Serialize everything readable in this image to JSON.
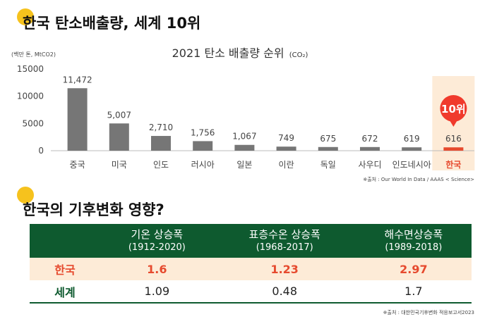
{
  "header1": "한국 탄소배출량, 세계 10위",
  "header2": "한국의 기후변화 영향?",
  "chart_data": {
    "type": "bar",
    "title": "2021 탄소 배출량 순위",
    "title_suffix": "(CO₂)",
    "ylabel": "(백만 톤, MtCO2)",
    "ylim": [
      0,
      15000
    ],
    "yticks": [
      0,
      5000,
      10000,
      15000
    ],
    "categories": [
      "중국",
      "미국",
      "인도",
      "러시아",
      "일본",
      "이란",
      "독일",
      "사우디",
      "인도네시아",
      "한국"
    ],
    "values": [
      11472,
      5007,
      2710,
      1756,
      1067,
      749,
      675,
      672,
      619,
      616
    ],
    "value_labels": [
      "11,472",
      "5,007",
      "2,710",
      "1,756",
      "1,067",
      "749",
      "675",
      "672",
      "619",
      "616"
    ],
    "highlight_index": 9,
    "highlight_badge": "10위",
    "grid": false,
    "source": "※출처 : Our World In Data / AAAS < Science>",
    "colors": {
      "bar": "#767676",
      "highlight_bar": "#e64a2e",
      "highlight_bg": "#fdebd7",
      "badge": "#f03a2c"
    }
  },
  "table": {
    "columns": [
      {
        "line1": "기온 상승폭",
        "line2": "(1912-2020)"
      },
      {
        "line1": "표층수온 상승폭",
        "line2": "(1968-2017)"
      },
      {
        "line1": "해수면상승폭",
        "line2": "(1989-2018)"
      }
    ],
    "rows": [
      {
        "label": "한국",
        "values": [
          "1.6",
          "1.23",
          "2.97"
        ]
      },
      {
        "label": "세계",
        "values": [
          "1.09",
          "0.48",
          "1.7"
        ]
      }
    ],
    "source": "※출처 : 대한민국기후변화 적응보고서2023",
    "colors": {
      "header": "#0e5a2f",
      "korea_row": "#fdebd7",
      "korea_text": "#e64a2e"
    }
  }
}
